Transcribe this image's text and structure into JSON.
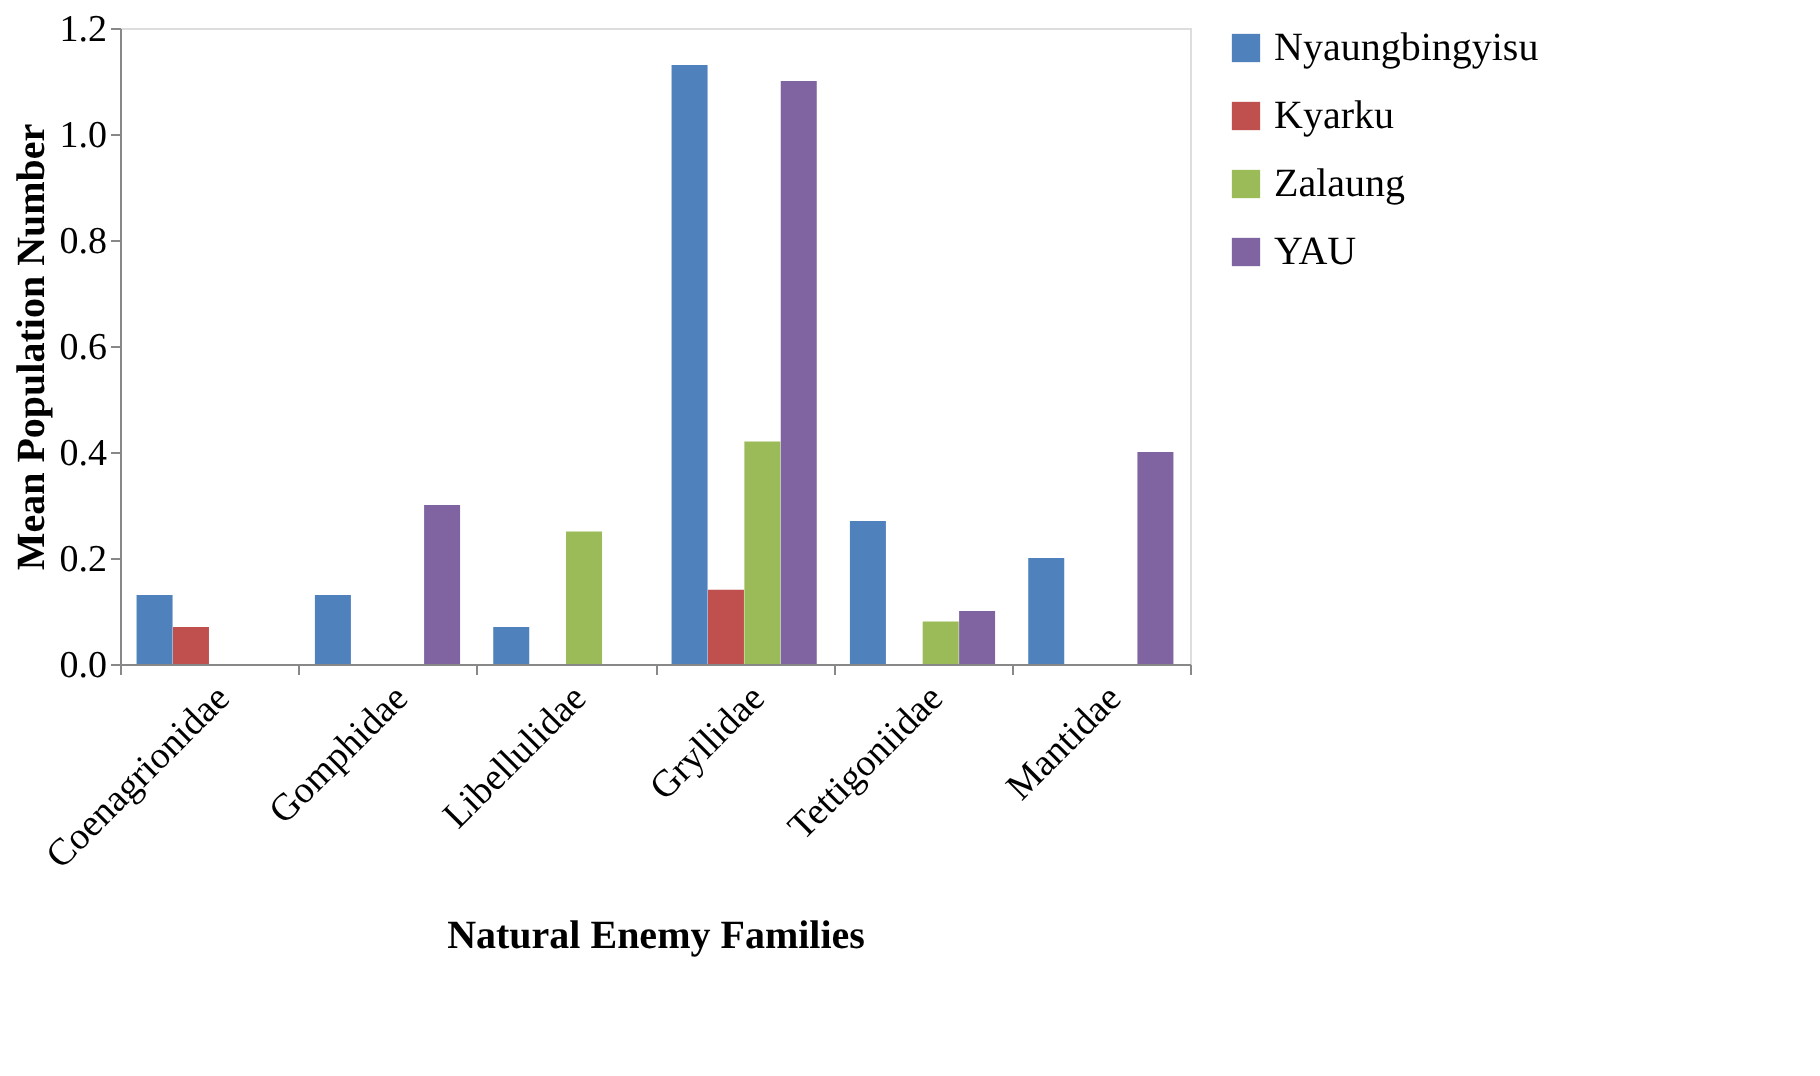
{
  "chart_data": {
    "type": "bar",
    "xlabel": "Natural Enemy Families",
    "ylabel": "Mean Population Number",
    "categories": [
      "Coenagrionidae",
      "Gomphidae",
      "Libellulidae",
      "Gryllidae",
      "Tettigoniidae",
      "Mantidae"
    ],
    "series": [
      {
        "name": "Nyaungbingyisu",
        "color": "#4f81bd",
        "values": [
          0.13,
          0.13,
          0.07,
          1.13,
          0.27,
          0.2
        ]
      },
      {
        "name": "Kyarku",
        "color": "#c0504d",
        "values": [
          0.07,
          0,
          0,
          0.14,
          0,
          0
        ]
      },
      {
        "name": "Zalaung",
        "color": "#9bbb59",
        "values": [
          0,
          0,
          0.25,
          0.42,
          0.08,
          0
        ]
      },
      {
        "name": "YAU",
        "color": "#8064a2",
        "values": [
          0,
          0.3,
          0,
          1.1,
          0.1,
          0.4
        ]
      }
    ],
    "ylim": [
      0,
      1.2
    ],
    "yticks": [
      {
        "value": 0,
        "label": "0.0"
      },
      {
        "value": 0.2,
        "label": "0.2"
      },
      {
        "value": 0.4,
        "label": "0.4"
      },
      {
        "value": 0.6,
        "label": "0.6"
      },
      {
        "value": 0.8,
        "label": "0.8"
      },
      {
        "value": 1.0,
        "label": "1.0"
      },
      {
        "value": 1.2,
        "label": "1.2"
      }
    ],
    "grid": false,
    "legend": "right"
  }
}
